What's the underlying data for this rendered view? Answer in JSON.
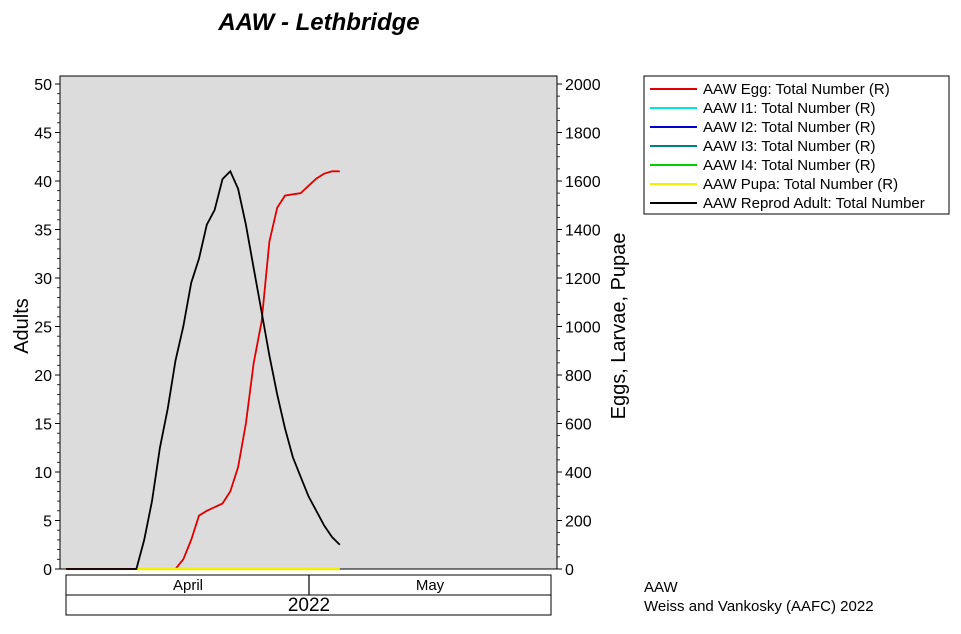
{
  "chart_data": {
    "type": "line",
    "title": "AAW - Lethbridge",
    "ylabel_left": "Adults",
    "ylabel_right": "Eggs, Larvae, Pupae",
    "ylim_left": [
      0,
      50
    ],
    "ylim_right": [
      0,
      2000
    ],
    "yticks_left": [
      "0",
      "5",
      "10",
      "15",
      "20",
      "25",
      "30",
      "35",
      "40",
      "45",
      "50"
    ],
    "yticks_right": [
      "0",
      "200",
      "400",
      "600",
      "800",
      "1000",
      "1200",
      "1400",
      "1600",
      "1800",
      "2000"
    ],
    "x_months": [
      "April",
      "May"
    ],
    "x_year": "2022",
    "grid": false,
    "legend_position": "right",
    "background": "#dcdcdc",
    "series": [
      {
        "name": "AAW Egg: Total Number (R)",
        "axis": "right",
        "color": "#e00000",
        "x": [
          "2022-03-30",
          "2022-04-08",
          "2022-04-09",
          "2022-04-10",
          "2022-04-11",
          "2022-04-12",
          "2022-04-13",
          "2022-04-14",
          "2022-04-15",
          "2022-04-16",
          "2022-04-17",
          "2022-04-18",
          "2022-04-19",
          "2022-04-20",
          "2022-04-21",
          "2022-04-22",
          "2022-04-23",
          "2022-04-24",
          "2022-04-25",
          "2022-04-26",
          "2022-04-27",
          "2022-04-28",
          "2022-04-29",
          "2022-04-30",
          "2022-05-01",
          "2022-05-02",
          "2022-05-03",
          "2022-05-04"
        ],
        "y": [
          0,
          0,
          0,
          0,
          0,
          0,
          0,
          40,
          120,
          220,
          240,
          255,
          270,
          320,
          420,
          600,
          850,
          1020,
          1350,
          1490,
          1540,
          1545,
          1550,
          1580,
          1610,
          1630,
          1640,
          1640
        ]
      },
      {
        "name": "AAW I1: Total Number (R)",
        "axis": "right",
        "color": "#00e5e5",
        "x": [],
        "y": []
      },
      {
        "name": "AAW I2: Total Number (R)",
        "axis": "right",
        "color": "#0000d0",
        "x": [],
        "y": []
      },
      {
        "name": "AAW I3: Total Number (R)",
        "axis": "right",
        "color": "#008080",
        "x": [],
        "y": []
      },
      {
        "name": "AAW I4: Total Number (R)",
        "axis": "right",
        "color": "#00d000",
        "x": [],
        "y": []
      },
      {
        "name": "AAW Pupa: Total Number (R)",
        "axis": "right",
        "color": "#f0f000",
        "x": [
          "2022-04-08",
          "2022-05-04"
        ],
        "y": [
          0,
          0
        ]
      },
      {
        "name": "AAW Reprod Adult: Total Number",
        "axis": "left",
        "color": "#000000",
        "x": [
          "2022-03-30",
          "2022-04-08",
          "2022-04-09",
          "2022-04-10",
          "2022-04-11",
          "2022-04-12",
          "2022-04-13",
          "2022-04-14",
          "2022-04-15",
          "2022-04-16",
          "2022-04-17",
          "2022-04-18",
          "2022-04-19",
          "2022-04-20",
          "2022-04-21",
          "2022-04-22",
          "2022-04-23",
          "2022-04-24",
          "2022-04-25",
          "2022-04-26",
          "2022-04-27",
          "2022-04-28",
          "2022-04-29",
          "2022-04-30",
          "2022-05-01",
          "2022-05-02",
          "2022-05-03",
          "2022-05-04"
        ],
        "y": [
          0,
          0,
          3,
          7,
          12.5,
          16.5,
          21.5,
          25,
          29.5,
          32,
          35.5,
          37,
          40.2,
          41,
          39.2,
          35.5,
          31,
          26.5,
          22,
          18,
          14.5,
          11.5,
          9.5,
          7.5,
          6,
          4.5,
          3.3,
          2.5
        ]
      }
    ]
  },
  "footer": {
    "line1": "AAW",
    "line2": "Weiss and Vankosky (AAFC) 2022"
  }
}
